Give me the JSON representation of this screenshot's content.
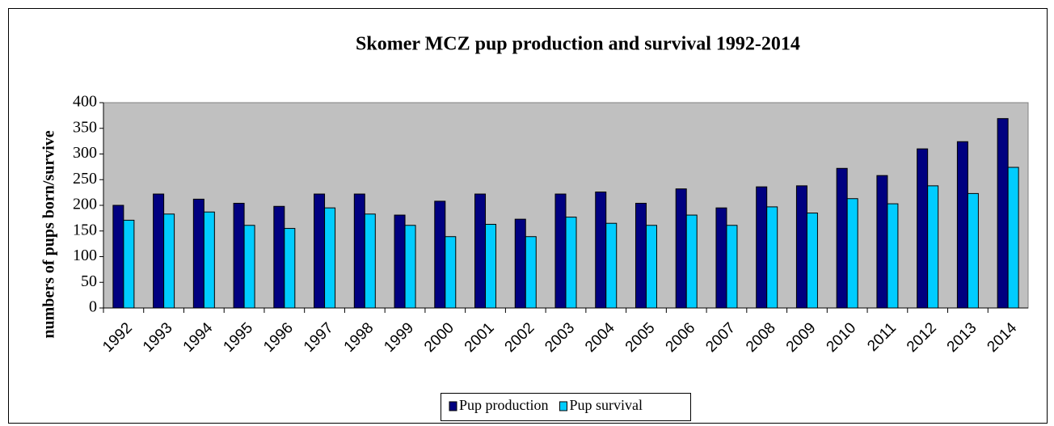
{
  "chart_data": {
    "type": "bar",
    "title": "Skomer MCZ pup production and survival 1992-2014",
    "y_label": "numbers of pups born/survive",
    "categories": [
      "1992",
      "1993",
      "1994",
      "1995",
      "1996",
      "1997",
      "1998",
      "1999",
      "2000",
      "2001",
      "2002",
      "2003",
      "2004",
      "2005",
      "2006",
      "2007",
      "2008",
      "2009",
      "2010",
      "2011",
      "2012",
      "2013",
      "2014"
    ],
    "series": [
      {
        "name": "Pup production",
        "color": "#000080",
        "values": [
          200,
          222,
          212,
          204,
          198,
          222,
          222,
          181,
          208,
          222,
          173,
          222,
          226,
          204,
          232,
          195,
          236,
          238,
          272,
          258,
          310,
          324,
          369
        ]
      },
      {
        "name": "Pup survival",
        "color": "#00ccff",
        "values": [
          171,
          183,
          187,
          161,
          155,
          195,
          183,
          161,
          139,
          163,
          139,
          177,
          165,
          161,
          181,
          161,
          197,
          185,
          213,
          203,
          238,
          223,
          274
        ]
      }
    ],
    "ylim": [
      0,
      400
    ],
    "yticks": [
      0,
      50,
      100,
      150,
      200,
      250,
      300,
      350,
      400
    ],
    "grid": false,
    "legend": "bottom"
  }
}
